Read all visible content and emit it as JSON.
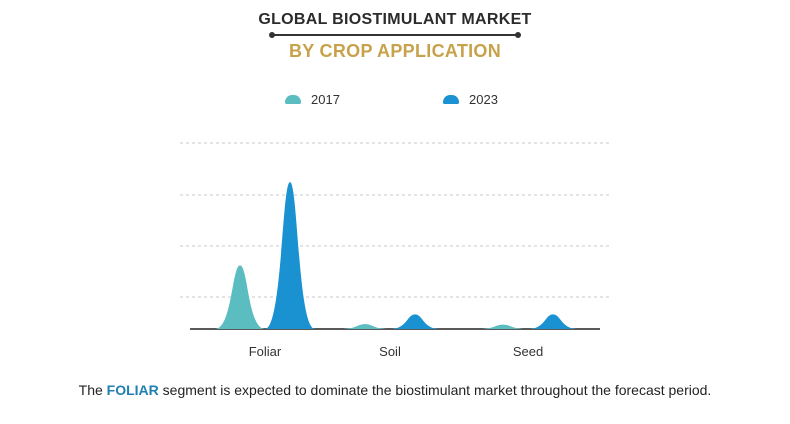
{
  "header": {
    "title": "GLOBAL BIOSTIMULANT MARKET",
    "subtitle": "BY CROP APPLICATION"
  },
  "footer": {
    "prefix": "The ",
    "highlight": "FOLIAR",
    "suffix": " segment is expected to dominate the biostimulant market throughout the forecast period."
  },
  "colors": {
    "series_2017": "#5bbdbf",
    "series_2023": "#1a92d1",
    "title": "#2b2b2b",
    "subtitle": "#c8a24a",
    "highlight": "#1f7fb4"
  },
  "chart_data": {
    "type": "area",
    "title": "GLOBAL BIOSTIMULANT MARKET",
    "subtitle": "BY CROP APPLICATION",
    "categories": [
      "Foliar",
      "Soil",
      "Seed"
    ],
    "series": [
      {
        "name": "2017",
        "values": [
          13,
          1,
          0.9
        ]
      },
      {
        "name": "2023",
        "values": [
          30,
          3,
          3
        ]
      }
    ],
    "ylim": [
      0,
      38
    ],
    "grid": true,
    "legend": "top-center",
    "xlabel": "",
    "ylabel": ""
  }
}
